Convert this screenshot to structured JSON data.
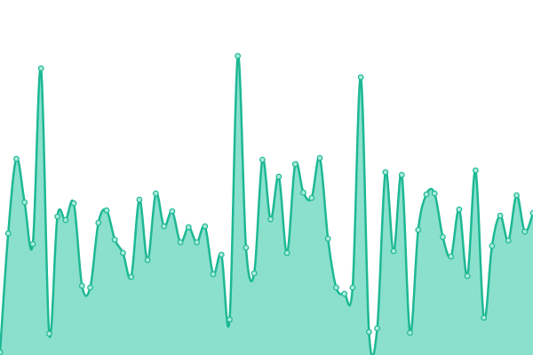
{
  "chart_data": {
    "type": "area",
    "values": [
      3,
      137,
      221,
      172,
      125,
      323,
      24,
      156,
      152,
      171,
      78,
      76,
      149,
      163,
      130,
      115,
      88,
      175,
      107,
      182,
      145,
      162,
      127,
      144,
      127,
      145,
      91,
      113,
      40,
      337,
      121,
      92,
      220,
      153,
      201,
      115,
      215,
      183,
      177,
      222,
      131,
      76,
      69,
      76,
      313,
      26,
      30,
      206,
      117,
      203,
      25,
      141,
      181,
      182,
      133,
      111,
      164,
      89,
      208,
      42,
      123,
      157,
      129,
      180,
      139,
      160
    ],
    "ylim": [
      0,
      400
    ],
    "color": "#1db894",
    "fill_color": "#8ae0cc",
    "marker_color": "#a8ead9",
    "grid": false
  }
}
